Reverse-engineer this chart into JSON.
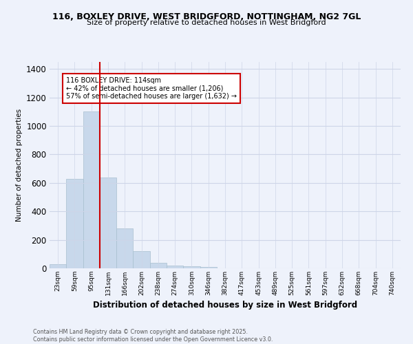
{
  "title1": "116, BOXLEY DRIVE, WEST BRIDGFORD, NOTTINGHAM, NG2 7GL",
  "title2": "Size of property relative to detached houses in West Bridgford",
  "xlabel": "Distribution of detached houses by size in West Bridgford",
  "ylabel": "Number of detached properties",
  "footer1": "Contains HM Land Registry data © Crown copyright and database right 2025.",
  "footer2": "Contains public sector information licensed under the Open Government Licence v3.0.",
  "annotation_line1": "116 BOXLEY DRIVE: 114sqm",
  "annotation_line2": "← 42% of detached houses are smaller (1,206)",
  "annotation_line3": "57% of semi-detached houses are larger (1,632) →",
  "bar_color": "#c8d8eb",
  "bar_edge_color": "#a8bfcf",
  "vline_color": "#cc0000",
  "vline_x": 2.5,
  "background_color": "#eef2fb",
  "grid_color": "#cdd5e8",
  "categories": [
    "23sqm",
    "59sqm",
    "95sqm",
    "131sqm",
    "166sqm",
    "202sqm",
    "238sqm",
    "274sqm",
    "310sqm",
    "346sqm",
    "382sqm",
    "417sqm",
    "453sqm",
    "489sqm",
    "525sqm",
    "561sqm",
    "597sqm",
    "632sqm",
    "668sqm",
    "704sqm",
    "740sqm"
  ],
  "values": [
    30,
    630,
    1100,
    640,
    280,
    120,
    40,
    20,
    15,
    10,
    0,
    0,
    0,
    0,
    0,
    0,
    0,
    0,
    0,
    0,
    0
  ],
  "ylim": [
    0,
    1450
  ],
  "yticks": [
    0,
    200,
    400,
    600,
    800,
    1000,
    1200,
    1400
  ]
}
